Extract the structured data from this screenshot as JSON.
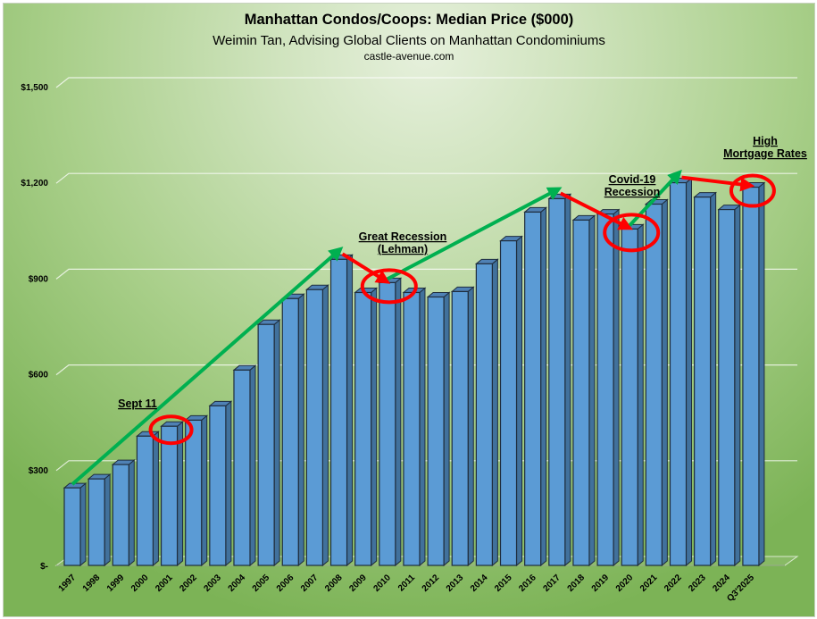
{
  "chart_data": {
    "type": "bar",
    "style": "3d-column",
    "title": "Manhattan Condos/Coops: Median Price ($000)",
    "subtitle": "Weimin Tan, Advising Global Clients on Manhattan Condominiums",
    "source": "castle-avenue.com",
    "xlabel": "",
    "ylabel": "",
    "ylim": [
      0,
      1500
    ],
    "yticks": [
      0,
      300,
      600,
      900,
      1200,
      1500
    ],
    "ytick_labels": [
      "$-",
      "$300",
      "$600",
      "$900",
      "$1,200",
      "$1,500"
    ],
    "grid": true,
    "categories": [
      "1997",
      "1998",
      "1999",
      "2000",
      "2001",
      "2002",
      "2003",
      "2004",
      "2005",
      "2006",
      "2007",
      "2008",
      "2009",
      "2010",
      "2011",
      "2012",
      "2013",
      "2014",
      "2015",
      "2016",
      "2017",
      "2018",
      "2019",
      "2020",
      "2021",
      "2022",
      "2023",
      "2024",
      "Q3'2025"
    ],
    "values": [
      243,
      271,
      316,
      405,
      436,
      455,
      500,
      612,
      755,
      836,
      864,
      959,
      855,
      886,
      855,
      841,
      858,
      945,
      1017,
      1107,
      1149,
      1082,
      1101,
      1054,
      1132,
      1199,
      1154,
      1115,
      1185
    ],
    "colors": {
      "bar_front": "#5b9bd5",
      "bar_side": "#41719c",
      "bar_top": "#4f81b5",
      "bar_outline": "#1f2d3d",
      "trend_up": "#00b050",
      "trend_down": "#ff0000",
      "highlight": "#ff0000"
    },
    "annotations": [
      {
        "id": "sept11",
        "lines": [
          "Sept 11"
        ],
        "highlight_category": "2001"
      },
      {
        "id": "great-recession",
        "lines": [
          "Great Recession",
          "(Lehman)"
        ],
        "highlight_category": "2010"
      },
      {
        "id": "covid",
        "lines": [
          "Covid-19",
          "Recession"
        ],
        "highlight_category": "2020"
      },
      {
        "id": "mortgage",
        "lines": [
          "High",
          "Mortgage Rates"
        ],
        "highlight_category": "Q3'2025"
      }
    ],
    "trend_arrows": [
      {
        "direction": "up",
        "from": "1997",
        "to": "2008"
      },
      {
        "direction": "down",
        "from": "2008",
        "to": "2010"
      },
      {
        "direction": "up",
        "from": "2010",
        "to": "2017"
      },
      {
        "direction": "down",
        "from": "2017",
        "to": "2020"
      },
      {
        "direction": "up",
        "from": "2020",
        "to": "2022"
      },
      {
        "direction": "down",
        "from": "2022",
        "to": "Q3'2025"
      }
    ]
  }
}
